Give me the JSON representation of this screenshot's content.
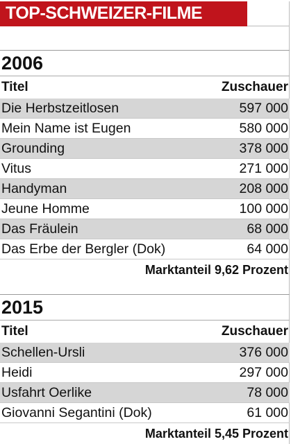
{
  "title": "TOP-SCHWEIZER-FILME",
  "sections": [
    {
      "year": "2006",
      "col_title": "Titel",
      "col_viewers": "Zuschauer",
      "rows": [
        {
          "name": "Die Herbstzeitlosen",
          "value": "597 000"
        },
        {
          "name": "Mein Name ist Eugen",
          "value": "580 000"
        },
        {
          "name": "Grounding",
          "value": "378 000"
        },
        {
          "name": "Vitus",
          "value": "271 000"
        },
        {
          "name": "Handyman",
          "value": "208 000"
        },
        {
          "name": "Jeune Homme",
          "value": "100 000"
        },
        {
          "name": "Das Fräulein",
          "value": "68 000"
        },
        {
          "name": "Das Erbe der Bergler (Dok)",
          "value": "64 000"
        }
      ],
      "market_share": "Marktanteil 9,62 Prozent"
    },
    {
      "year": "2015",
      "col_title": "Titel",
      "col_viewers": "Zuschauer",
      "rows": [
        {
          "name": "Schellen-Ursli",
          "value": "376 000"
        },
        {
          "name": "Heidi",
          "value": "297 000"
        },
        {
          "name": "Usfahrt Oerlike",
          "value": "78 000"
        },
        {
          "name": "Giovanni Segantini (Dok)",
          "value": "61 000"
        }
      ],
      "market_share": "Marktanteil 5,45 Prozent"
    }
  ]
}
